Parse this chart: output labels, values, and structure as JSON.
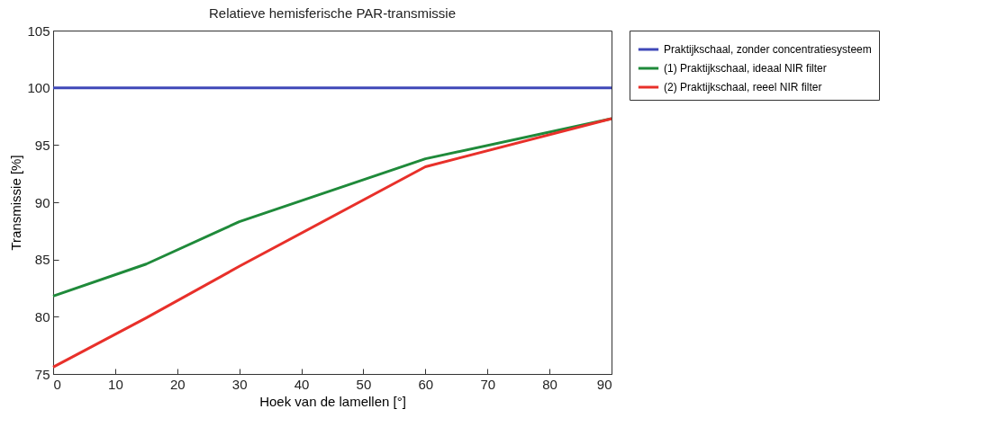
{
  "chart_data": {
    "type": "line",
    "title": "Relatieve hemisferische PAR-transmissie",
    "xlabel": "Hoek van de lamellen [°]",
    "ylabel": "Transmissie [%]",
    "x": [
      0,
      15,
      30,
      60,
      90
    ],
    "series": [
      {
        "name": "Praktijkschaal, zonder concentratiesysteem",
        "color": "#3f48b8",
        "values": [
          100,
          100,
          100,
          100,
          100
        ]
      },
      {
        "name": "(1) Praktijkschaal, ideaal NIR filter",
        "color": "#1f8a3a",
        "values": [
          81.8,
          84.6,
          88.3,
          93.8,
          97.3
        ]
      },
      {
        "name": "(2) Praktijkschaal, reeel NIR filter",
        "color": "#e8302a",
        "values": [
          75.6,
          79.9,
          84.4,
          93.1,
          97.3
        ]
      }
    ],
    "xlim": [
      0,
      90
    ],
    "xticks": [
      0,
      10,
      20,
      30,
      40,
      50,
      60,
      70,
      80,
      90
    ],
    "ylim": [
      75,
      105
    ],
    "yticks": [
      75,
      80,
      85,
      90,
      95,
      100,
      105
    ],
    "grid": false,
    "legend": "top right",
    "marker": "none",
    "line_style": "solid"
  }
}
